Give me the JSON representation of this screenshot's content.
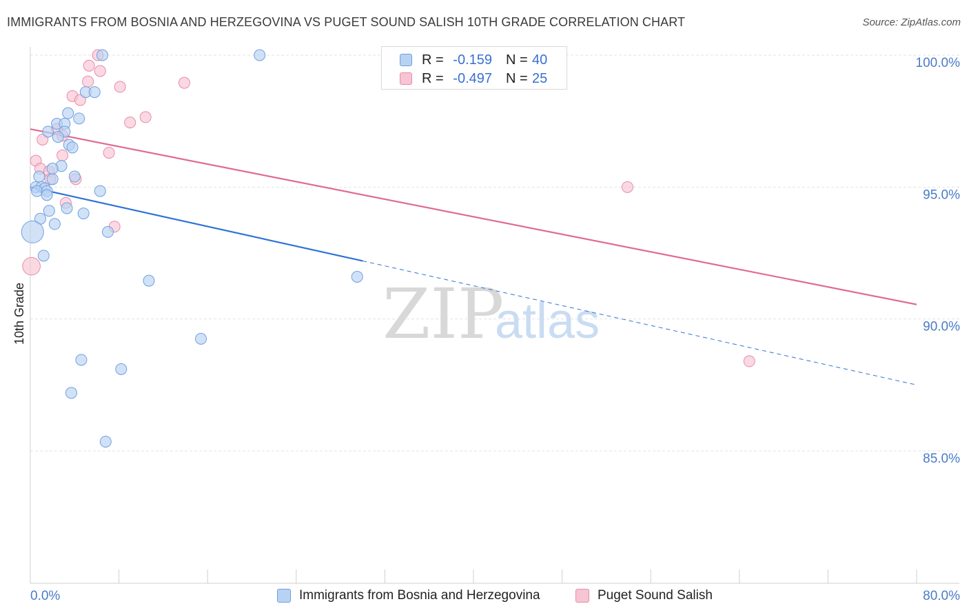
{
  "title": "IMMIGRANTS FROM BOSNIA AND HERZEGOVINA VS PUGET SOUND SALISH 10TH GRADE CORRELATION CHART",
  "source": "Source: ZipAtlas.com",
  "watermark": {
    "zip": "ZIP",
    "atlas": "atlas"
  },
  "colors": {
    "blue_fill": "#b8d2f3",
    "blue_stroke": "#6f9fe0",
    "blue_line": "#2f72d6",
    "pink_fill": "#f7c4d4",
    "pink_stroke": "#e88aa8",
    "pink_line": "#e06a93",
    "tick_text": "#4a7bc8",
    "grid": "#e3e3e3"
  },
  "stats": [
    {
      "r_label": "R =",
      "r_value": "-0.159",
      "n_label": "N =",
      "n_value": "40"
    },
    {
      "r_label": "R =",
      "r_value": "-0.497",
      "n_label": "N =",
      "n_value": "25"
    }
  ],
  "legend": {
    "series1": "Immigrants from Bosnia and Herzegovina",
    "series2": "Puget Sound Salish"
  },
  "chart_data": {
    "type": "scatter",
    "title": "IMMIGRANTS FROM BOSNIA AND HERZEGOVINA VS PUGET SOUND SALISH 10TH GRADE CORRELATION CHART",
    "xlabel": "",
    "ylabel": "10th Grade",
    "xlim": [
      0,
      80
    ],
    "ylim": [
      80.5,
      100.5
    ],
    "y_ticks": [
      85,
      90,
      95,
      100
    ],
    "y_tick_labels": [
      "85.0%",
      "90.0%",
      "95.0%",
      "100.0%"
    ],
    "x_tick_labels": [
      "0.0%",
      "80.0%"
    ],
    "x_tick_positions": [
      0,
      8,
      16,
      24,
      32,
      40,
      48,
      56,
      64,
      72,
      80
    ],
    "grid": true,
    "series": [
      {
        "name": "Immigrants from Bosnia and Herzegovina",
        "color": "blue",
        "points": [
          {
            "x": 6.5,
            "y": 100.0,
            "s": 1
          },
          {
            "x": 20.7,
            "y": 100.0,
            "s": 1
          },
          {
            "x": 5.0,
            "y": 98.6,
            "s": 1
          },
          {
            "x": 5.8,
            "y": 98.6,
            "s": 1
          },
          {
            "x": 3.4,
            "y": 97.8,
            "s": 1
          },
          {
            "x": 4.4,
            "y": 97.6,
            "s": 1
          },
          {
            "x": 2.4,
            "y": 97.4,
            "s": 1
          },
          {
            "x": 3.1,
            "y": 97.4,
            "s": 1
          },
          {
            "x": 1.6,
            "y": 97.1,
            "s": 1
          },
          {
            "x": 3.1,
            "y": 97.1,
            "s": 1
          },
          {
            "x": 2.5,
            "y": 96.9,
            "s": 1
          },
          {
            "x": 3.5,
            "y": 96.6,
            "s": 1
          },
          {
            "x": 3.8,
            "y": 96.5,
            "s": 1
          },
          {
            "x": 2.8,
            "y": 95.8,
            "s": 1
          },
          {
            "x": 2.0,
            "y": 95.7,
            "s": 1
          },
          {
            "x": 0.8,
            "y": 95.4,
            "s": 1
          },
          {
            "x": 4.0,
            "y": 95.4,
            "s": 1
          },
          {
            "x": 2.0,
            "y": 95.3,
            "s": 1
          },
          {
            "x": 0.5,
            "y": 95.0,
            "s": 1
          },
          {
            "x": 1.0,
            "y": 95.0,
            "s": 1
          },
          {
            "x": 1.3,
            "y": 94.95,
            "s": 1
          },
          {
            "x": 0.6,
            "y": 94.85,
            "s": 1
          },
          {
            "x": 1.5,
            "y": 94.85,
            "s": 1
          },
          {
            "x": 6.3,
            "y": 94.85,
            "s": 1
          },
          {
            "x": 1.5,
            "y": 94.7,
            "s": 1
          },
          {
            "x": 1.7,
            "y": 94.1,
            "s": 1
          },
          {
            "x": 4.8,
            "y": 94.0,
            "s": 1
          },
          {
            "x": 0.9,
            "y": 93.8,
            "s": 1
          },
          {
            "x": 2.2,
            "y": 93.6,
            "s": 1
          },
          {
            "x": 3.3,
            "y": 94.2,
            "s": 1
          },
          {
            "x": 7.0,
            "y": 93.3,
            "s": 1
          },
          {
            "x": 0.2,
            "y": 93.3,
            "s": 2
          },
          {
            "x": 1.2,
            "y": 92.4,
            "s": 1
          },
          {
            "x": 10.7,
            "y": 91.45,
            "s": 1
          },
          {
            "x": 29.5,
            "y": 91.6,
            "s": 1
          },
          {
            "x": 15.4,
            "y": 89.25,
            "s": 1
          },
          {
            "x": 4.6,
            "y": 88.45,
            "s": 1
          },
          {
            "x": 8.2,
            "y": 88.1,
            "s": 1
          },
          {
            "x": 3.7,
            "y": 87.2,
            "s": 1
          },
          {
            "x": 6.8,
            "y": 85.35,
            "s": 1
          }
        ],
        "trend": {
          "x1": 0,
          "y1": 95.0,
          "x2": 30.0,
          "y2": 92.2,
          "dash_to_x": 80,
          "dash_to_y": 87.5
        }
      },
      {
        "name": "Puget Sound Salish",
        "color": "pink",
        "points": [
          {
            "x": 6.1,
            "y": 100.0,
            "s": 1
          },
          {
            "x": 5.3,
            "y": 99.6,
            "s": 1
          },
          {
            "x": 6.3,
            "y": 99.4,
            "s": 1
          },
          {
            "x": 5.2,
            "y": 99.0,
            "s": 1
          },
          {
            "x": 13.9,
            "y": 98.95,
            "s": 1
          },
          {
            "x": 8.1,
            "y": 98.8,
            "s": 1
          },
          {
            "x": 3.8,
            "y": 98.45,
            "s": 1
          },
          {
            "x": 4.5,
            "y": 98.3,
            "s": 1
          },
          {
            "x": 10.4,
            "y": 97.65,
            "s": 1
          },
          {
            "x": 9.0,
            "y": 97.45,
            "s": 1
          },
          {
            "x": 2.4,
            "y": 97.2,
            "s": 1
          },
          {
            "x": 2.9,
            "y": 96.95,
            "s": 1
          },
          {
            "x": 1.1,
            "y": 96.8,
            "s": 1
          },
          {
            "x": 7.1,
            "y": 96.3,
            "s": 1
          },
          {
            "x": 2.9,
            "y": 96.2,
            "s": 1
          },
          {
            "x": 0.5,
            "y": 96.0,
            "s": 1
          },
          {
            "x": 0.9,
            "y": 95.7,
            "s": 1
          },
          {
            "x": 1.7,
            "y": 95.6,
            "s": 1
          },
          {
            "x": 1.8,
            "y": 95.3,
            "s": 1
          },
          {
            "x": 4.1,
            "y": 95.3,
            "s": 1
          },
          {
            "x": 3.2,
            "y": 94.4,
            "s": 1
          },
          {
            "x": 7.6,
            "y": 93.5,
            "s": 1
          },
          {
            "x": 0.1,
            "y": 92.0,
            "s": 1.6
          },
          {
            "x": 53.9,
            "y": 95.0,
            "s": 1
          },
          {
            "x": 64.9,
            "y": 88.4,
            "s": 1
          }
        ],
        "trend": {
          "x1": 0,
          "y1": 97.2,
          "x2": 80,
          "y2": 90.55
        }
      }
    ]
  }
}
